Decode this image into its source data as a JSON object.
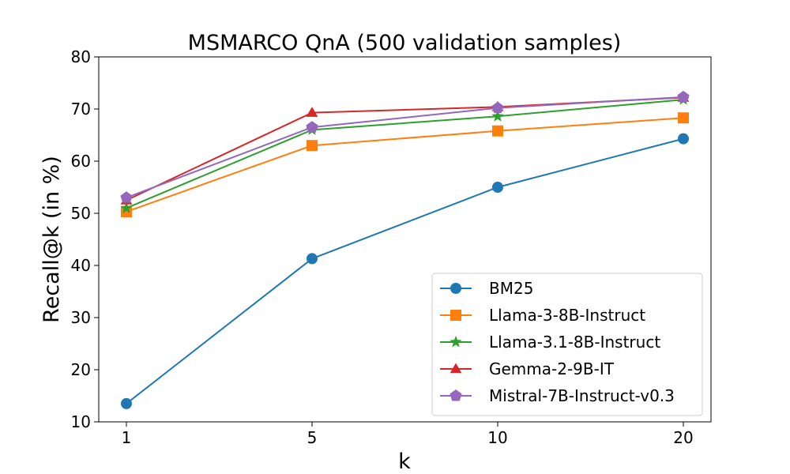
{
  "chart_data": {
    "type": "line",
    "title": "MSMARCO QnA (500 validation samples)",
    "xlabel": "k",
    "ylabel": "Recall@k (in %)",
    "categories": [
      "1",
      "5",
      "10",
      "20"
    ],
    "ylim": [
      10,
      80
    ],
    "yticks": [
      10,
      20,
      30,
      40,
      50,
      60,
      70,
      80
    ],
    "grid": false,
    "legend_position": "lower-right",
    "series": [
      {
        "name": "BM25",
        "color": "#1f77b4",
        "marker": "circle",
        "values": [
          13.5,
          41.3,
          55.0,
          64.3
        ]
      },
      {
        "name": "Llama-3-8B-Instruct",
        "color": "#ff7f0e",
        "marker": "square",
        "values": [
          50.3,
          63.0,
          65.8,
          68.3
        ]
      },
      {
        "name": "Llama-3.1-8B-Instruct",
        "color": "#2ca02c",
        "marker": "star",
        "values": [
          51.0,
          66.0,
          68.6,
          71.8
        ]
      },
      {
        "name": "Gemma-2-9B-IT",
        "color": "#d62728",
        "marker": "triangle",
        "values": [
          52.5,
          69.3,
          70.4,
          72.2
        ]
      },
      {
        "name": "Mistral-7B-Instruct-v0.3",
        "color": "#9467bd",
        "marker": "pentagon",
        "values": [
          53.0,
          66.5,
          70.2,
          72.3
        ]
      }
    ]
  }
}
